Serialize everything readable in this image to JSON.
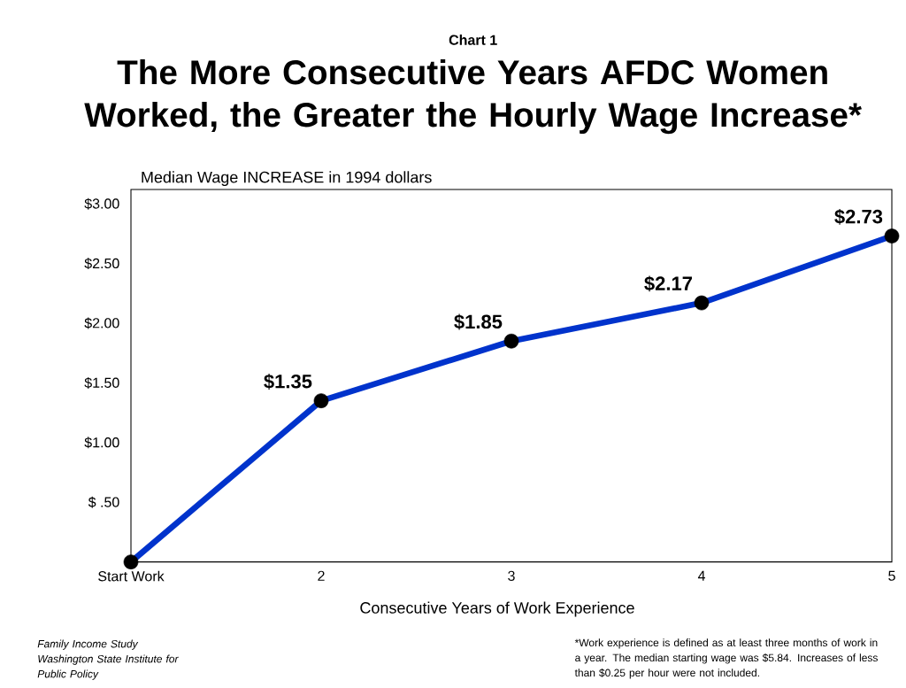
{
  "chart_data": {
    "type": "line",
    "subtitle": "Chart 1",
    "title": "The More Consecutive Years AFDC Women Worked, the Greater the Hourly Wage Increase*",
    "ylabel": "Median Wage INCREASE in 1994 dollars",
    "xlabel": "Consecutive Years of Work Experience",
    "categories": [
      "Start Work",
      "2",
      "3",
      "4",
      "5"
    ],
    "values": [
      0,
      1.35,
      1.85,
      2.17,
      2.73
    ],
    "value_labels": [
      null,
      "$1.35",
      "$1.85",
      "$2.17",
      "$2.73"
    ],
    "color": "#0033cc",
    "marker": "circle",
    "line_style": "solid",
    "ylim": [
      0,
      3.12
    ],
    "yticks": [
      {
        "value": 0.5,
        "label": "$ .50"
      },
      {
        "value": 1.0,
        "label": "$1.00"
      },
      {
        "value": 1.5,
        "label": "$1.50"
      },
      {
        "value": 2.0,
        "label": "$2.00"
      },
      {
        "value": 2.5,
        "label": "$2.50"
      },
      {
        "value": 3.0,
        "label": "$3.00"
      }
    ],
    "annotations": [
      "Family Income Study Washington State Institute for Public Policy",
      "*Work experience is defined as at least three months of work in a year.  The median starting wage was $5.84. Increases of less than $0.25 per hour were not included."
    ]
  }
}
